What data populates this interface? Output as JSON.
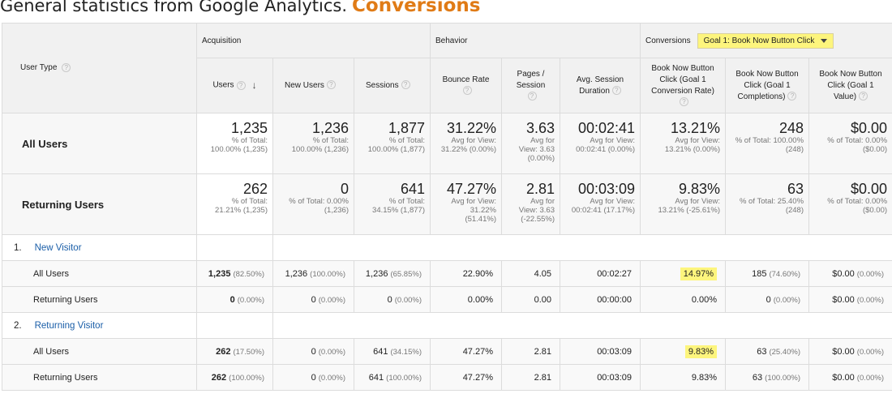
{
  "heading": {
    "plain": "General statistics from Google Analytics.",
    "accent": "Conversions"
  },
  "groups": {
    "user_type": "User Type",
    "acquisition": "Acquisition",
    "behavior": "Behavior",
    "conversions": "Conversions",
    "goal_select": "Goal 1: Book Now Button Click"
  },
  "columns": {
    "users": "Users",
    "new_users": "New Users",
    "sessions": "Sessions",
    "bounce_rate": "Bounce Rate",
    "pages_l1": "Pages /",
    "pages_l2": "Session",
    "avg_l1": "Avg. Session",
    "avg_l2": "Duration",
    "conv_l1": "Book Now Button",
    "conv_l2": "Click (Goal 1",
    "conv_l3": "Conversion Rate)",
    "comp_l1": "Book Now Button",
    "comp_l2": "Click (Goal 1",
    "comp_l3": "Completions)",
    "val_l1": "Book Now Button",
    "val_l2": "Click (Goal 1",
    "val_l3": "Value)"
  },
  "summary": [
    {
      "label": "All Users",
      "cells": [
        {
          "big": "1,235",
          "s1": "% of Total:",
          "s2": "100.00% (1,235)",
          "s3": ""
        },
        {
          "big": "1,236",
          "s1": "% of Total:",
          "s2": "100.00% (1,236)",
          "s3": ""
        },
        {
          "big": "1,877",
          "s1": "% of Total:",
          "s2": "100.00% (1,877)",
          "s3": ""
        },
        {
          "big": "31.22%",
          "s1": "Avg for View:",
          "s2": "31.22% (0.00%)",
          "s3": ""
        },
        {
          "big": "3.63",
          "s1": "Avg for",
          "s2": "View: 3.63",
          "s3": "(0.00%)"
        },
        {
          "big": "00:02:41",
          "s1": "Avg for View:",
          "s2": "00:02:41 (0.00%)",
          "s3": ""
        },
        {
          "big": "13.21%",
          "s1": "Avg for View:",
          "s2": "13.21% (0.00%)",
          "s3": ""
        },
        {
          "big": "248",
          "s1": "% of Total: 100.00%",
          "s2": "(248)",
          "s3": ""
        },
        {
          "big": "$0.00",
          "s1": "% of Total: 0.00%",
          "s2": "($0.00)",
          "s3": ""
        }
      ]
    },
    {
      "label": "Returning Users",
      "cells": [
        {
          "big": "262",
          "s1": "% of Total:",
          "s2": "21.21% (1,235)",
          "s3": ""
        },
        {
          "big": "0",
          "s1": "% of Total: 0.00%",
          "s2": "(1,236)",
          "s3": ""
        },
        {
          "big": "641",
          "s1": "% of Total:",
          "s2": "34.15% (1,877)",
          "s3": ""
        },
        {
          "big": "47.27%",
          "s1": "Avg for View:",
          "s2": "31.22%",
          "s3": "(51.41%)"
        },
        {
          "big": "2.81",
          "s1": "Avg for",
          "s2": "View: 3.63",
          "s3": "(-22.55%)"
        },
        {
          "big": "00:03:09",
          "s1": "Avg for View:",
          "s2": "00:02:41 (17.17%)",
          "s3": ""
        },
        {
          "big": "9.83%",
          "s1": "Avg for View:",
          "s2": "13.21% (-25.61%)",
          "s3": ""
        },
        {
          "big": "63",
          "s1": "% of Total: 25.40%",
          "s2": "(248)",
          "s3": ""
        },
        {
          "big": "$0.00",
          "s1": "% of Total: 0.00%",
          "s2": "($0.00)",
          "s3": ""
        }
      ]
    }
  ],
  "segments": [
    {
      "num": "1.",
      "name": "New Visitor",
      "rows": [
        {
          "label": "All Users",
          "users": "1,235",
          "users_pct": "(82.50%)",
          "new_users": "1,236",
          "new_users_pct": "(100.00%)",
          "sessions": "1,236",
          "sessions_pct": "(65.85%)",
          "bounce": "22.90%",
          "pages": "4.05",
          "duration": "00:02:27",
          "conv": "14.97%",
          "comp": "185",
          "comp_pct": "(74.60%)",
          "value": "$0.00",
          "value_pct": "(0.00%)"
        },
        {
          "label": "Returning Users",
          "users": "0",
          "users_pct": "(0.00%)",
          "new_users": "0",
          "new_users_pct": "(0.00%)",
          "sessions": "0",
          "sessions_pct": "(0.00%)",
          "bounce": "0.00%",
          "pages": "0.00",
          "duration": "00:00:00",
          "conv": "0.00%",
          "comp": "0",
          "comp_pct": "(0.00%)",
          "value": "$0.00",
          "value_pct": "(0.00%)"
        }
      ]
    },
    {
      "num": "2.",
      "name": "Returning Visitor",
      "rows": [
        {
          "label": "All Users",
          "users": "262",
          "users_pct": "(17.50%)",
          "new_users": "0",
          "new_users_pct": "(0.00%)",
          "sessions": "641",
          "sessions_pct": "(34.15%)",
          "bounce": "47.27%",
          "pages": "2.81",
          "duration": "00:03:09",
          "conv": "9.83%",
          "comp": "63",
          "comp_pct": "(25.40%)",
          "value": "$0.00",
          "value_pct": "(0.00%)"
        },
        {
          "label": "Returning Users",
          "users": "262",
          "users_pct": "(100.00%)",
          "new_users": "0",
          "new_users_pct": "(0.00%)",
          "sessions": "641",
          "sessions_pct": "(100.00%)",
          "bounce": "47.27%",
          "pages": "2.81",
          "duration": "00:03:09",
          "conv": "9.83%",
          "comp": "63",
          "comp_pct": "(100.00%)",
          "value": "$0.00",
          "value_pct": "(0.00%)"
        }
      ]
    }
  ],
  "help_glyph": "?",
  "sort_glyph": "↓",
  "accent_color": "#e07b16",
  "highlight_color": "#fdf57d",
  "link_color": "#1a5ea8"
}
